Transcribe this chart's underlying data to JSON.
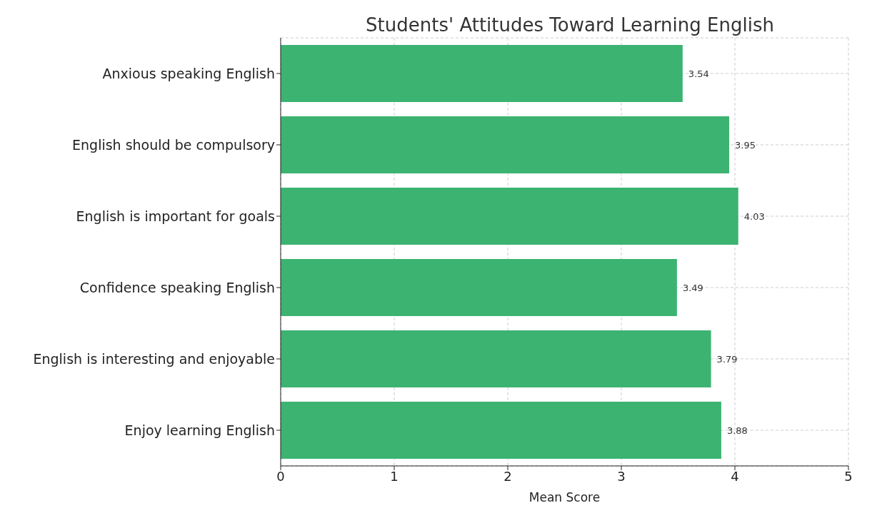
{
  "chart_data": {
    "type": "bar",
    "orientation": "horizontal",
    "title": "Students' Attitudes Toward Learning English",
    "xlabel": "Mean Score",
    "categories": [
      "Anxious speaking English",
      "English should be compulsory",
      "English is important for goals",
      "Confidence speaking English",
      "English is interesting and enjoyable",
      "Enjoy learning English"
    ],
    "values": [
      3.54,
      3.95,
      4.03,
      3.49,
      3.79,
      3.88
    ],
    "color": "#3cb371",
    "xlim": [
      0,
      5
    ],
    "xticks": [
      0,
      1,
      2,
      3,
      4,
      5
    ],
    "grid": true,
    "data_labels": true
  }
}
